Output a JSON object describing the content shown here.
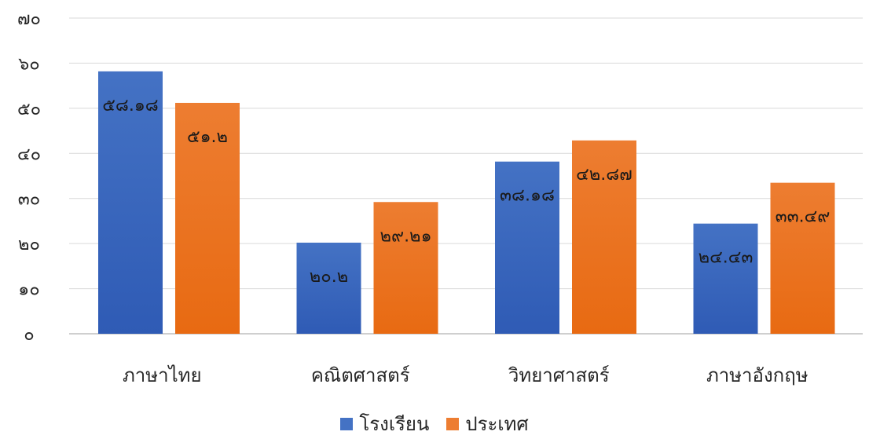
{
  "chart_data": {
    "type": "bar",
    "title": "",
    "xlabel": "",
    "ylabel": "",
    "categories": [
      "ภาษาไทย",
      "คณิตศาสตร์",
      "วิทยาศาสตร์",
      "ภาษาอังกฤษ"
    ],
    "series": [
      {
        "name": "โรงเรียน",
        "values": [
          58.18,
          20.2,
          38.18,
          24.43
        ],
        "labels": [
          "๕๘.๑๘",
          "๒๐.๒",
          "๓๘.๑๘",
          "๒๔.๔๓"
        ],
        "color": "#4472C4",
        "color_dark": "#2F5BB5"
      },
      {
        "name": "ประเทศ",
        "values": [
          51.2,
          29.21,
          42.87,
          33.49
        ],
        "labels": [
          "๕๑.๒",
          "๒๙.๒๑",
          "๔๒.๘๗",
          "๓๓.๔๙"
        ],
        "color": "#ED7D31",
        "color_dark": "#E86A12"
      }
    ],
    "ylim": [
      0,
      70
    ],
    "yticks": [
      0,
      10,
      20,
      30,
      40,
      50,
      60,
      70
    ],
    "ytick_labels": [
      "๐",
      "๑๐",
      "๒๐",
      "๓๐",
      "๔๐",
      "๕๐",
      "๖๐",
      "๗๐"
    ],
    "grid": true,
    "legend": "bottom"
  }
}
